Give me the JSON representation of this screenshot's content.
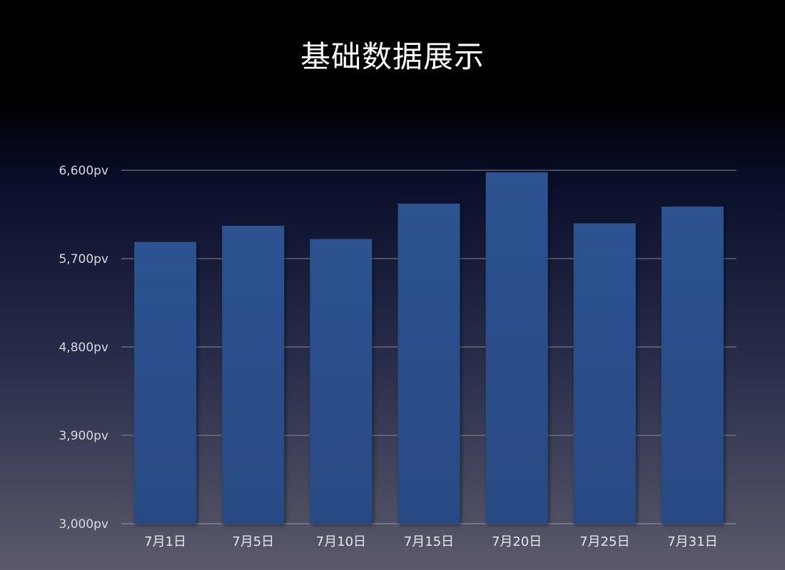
{
  "chart_data": {
    "type": "bar",
    "title": "基础数据展示",
    "xlabel": "",
    "ylabel": "",
    "categories": [
      "7月1日",
      "7月5日",
      "7月10日",
      "7月15日",
      "7月20日",
      "7月25日",
      "7月31日"
    ],
    "values": [
      5870,
      6035,
      5900,
      6260,
      6580,
      6060,
      6230
    ],
    "ylim": [
      3000,
      6600
    ],
    "yticks": [
      3000,
      3900,
      4800,
      5700,
      6600
    ],
    "ytick_labels": [
      "3,000pv",
      "3,900pv",
      "4,800pv",
      "5,700pv",
      "6,600pv"
    ],
    "grid": true,
    "legend": "none",
    "bar_color": "#2b4f8c"
  }
}
